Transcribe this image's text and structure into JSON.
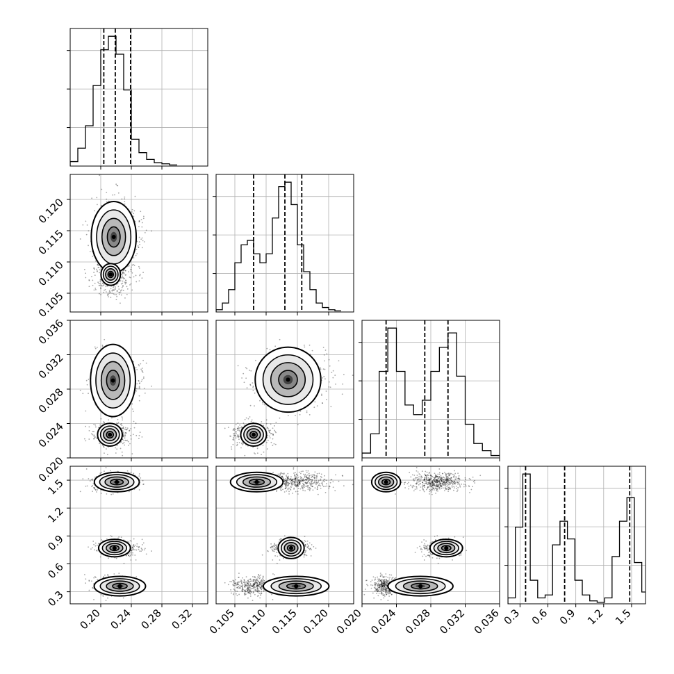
{
  "chart_data": {
    "type": "corner",
    "title": "",
    "grid": true,
    "colors": {
      "line": "#000000",
      "grid": "#b0b0b0",
      "background": "#ffffff"
    },
    "parameters": [
      {
        "ticks": [
          "0.20",
          "0.24",
          "0.28",
          "0.32"
        ],
        "range": [
          0.16,
          0.34
        ],
        "quantile_lines": [
          0.204,
          0.219,
          0.239
        ],
        "hist_edges": [
          0.16,
          0.17,
          0.18,
          0.19,
          0.2,
          0.21,
          0.22,
          0.23,
          0.24,
          0.25,
          0.26,
          0.27,
          0.28,
          0.29,
          0.3
        ],
        "hist_counts": [
          2,
          8,
          18,
          36,
          52,
          58,
          50,
          34,
          12,
          6,
          3,
          1.5,
          1,
          0.5
        ]
      },
      {
        "ticks": [
          "0.105",
          "0.110",
          "0.115",
          "0.120"
        ],
        "range": [
          0.102,
          0.124
        ],
        "quantile_lines": [
          0.108,
          0.113,
          0.1157
        ],
        "hist_edges": [
          0.102,
          0.103,
          0.104,
          0.105,
          0.106,
          0.107,
          0.108,
          0.109,
          0.11,
          0.111,
          0.112,
          0.113,
          0.114,
          0.115,
          0.116,
          0.117,
          0.118,
          0.119,
          0.12,
          0.121,
          0.122
        ],
        "hist_counts": [
          1,
          4,
          10,
          22,
          30,
          32,
          26,
          22,
          26,
          42,
          56,
          58,
          48,
          30,
          18,
          10,
          4,
          2,
          1,
          0.5
        ]
      },
      {
        "ticks": [
          "0.020",
          "0.024",
          "0.028",
          "0.032",
          "0.036"
        ],
        "range": [
          0.02,
          0.036
        ],
        "quantile_lines": [
          0.0228,
          0.0273,
          0.03
        ],
        "hist_edges": [
          0.02,
          0.021,
          0.022,
          0.023,
          0.024,
          0.025,
          0.026,
          0.027,
          0.028,
          0.029,
          0.03,
          0.031,
          0.032,
          0.033,
          0.034,
          0.035,
          0.036
        ],
        "hist_counts": [
          2,
          10,
          36,
          54,
          36,
          22,
          18,
          24,
          36,
          46,
          52,
          34,
          14,
          6,
          3,
          1
        ]
      },
      {
        "ticks": [
          "0.3",
          "0.6",
          "0.9",
          "1.2",
          "1.5"
        ],
        "range": [
          0.17,
          1.65
        ],
        "quantile_lines": [
          0.36,
          0.78,
          1.48
        ],
        "hist_edges": [
          0.17,
          0.25,
          0.33,
          0.41,
          0.49,
          0.57,
          0.65,
          0.73,
          0.81,
          0.89,
          0.97,
          1.05,
          1.13,
          1.21,
          1.29,
          1.37,
          1.45,
          1.53,
          1.61,
          1.65
        ],
        "hist_counts": [
          2,
          26,
          44,
          8,
          2,
          3,
          20,
          28,
          22,
          8,
          3,
          1,
          0.5,
          2,
          16,
          28,
          36,
          14,
          4
        ]
      }
    ],
    "modes": [
      {
        "p": [
          0.218,
          0.1141,
          0.0288,
          1.48
        ],
        "s": [
          0.013,
          0.003,
          0.0016,
          0.05
        ]
      },
      {
        "p": [
          0.214,
          0.108,
          0.0227,
          0.36
        ],
        "s": [
          0.012,
          0.0016,
          0.0008,
          0.05
        ]
      },
      {
        "p": [
          0.222,
          0.114,
          0.0291,
          0.77
        ],
        "s": [
          0.013,
          0.0015,
          0.001,
          0.05
        ]
      }
    ],
    "panel_modes": {
      "1-0": [
        [
          0.217,
          0.114,
          0.014,
          0.0027,
          1.0
        ],
        [
          0.213,
          0.108,
          0.011,
          0.0015,
          0.55
        ]
      ],
      "2-0": [
        [
          0.216,
          0.029,
          0.014,
          0.002,
          1.0
        ],
        [
          0.212,
          0.0227,
          0.011,
          0.0009,
          0.7
        ]
      ],
      "2-1": [
        [
          0.1135,
          0.0291,
          0.0025,
          0.0018,
          1.0
        ],
        [
          0.108,
          0.0227,
          0.0014,
          0.0009,
          0.7
        ]
      ],
      "3-0": [
        [
          0.221,
          1.48,
          0.014,
          0.05,
          1.0
        ],
        [
          0.218,
          0.77,
          0.011,
          0.05,
          0.9
        ],
        [
          0.225,
          0.36,
          0.016,
          0.05,
          1.0
        ]
      ],
      "3-1": [
        [
          0.1085,
          1.48,
          0.002,
          0.05,
          1.0
        ],
        [
          0.114,
          0.77,
          0.0011,
          0.06,
          0.9
        ],
        [
          0.1148,
          0.36,
          0.0025,
          0.05,
          1.0
        ]
      ],
      "3-2": [
        [
          0.0228,
          1.48,
          0.0008,
          0.05,
          1.0
        ],
        [
          0.0298,
          0.77,
          0.001,
          0.05,
          0.9
        ],
        [
          0.0268,
          0.36,
          0.0018,
          0.05,
          1.0
        ]
      ]
    }
  }
}
